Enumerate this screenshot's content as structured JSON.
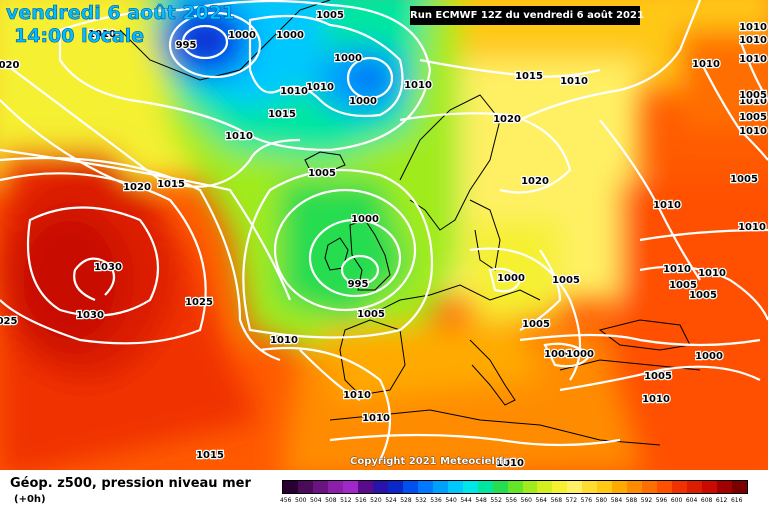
{
  "header": {
    "date": "vendredi 6 août 2021",
    "time": "14:00 locale",
    "run": "Run ECMWF 12Z du vendredi 6 août 2021"
  },
  "footer": {
    "copyright": "Copyright 2021 Meteociel.fr",
    "title": "Géop. z500, pression niveau mer",
    "offset": "(+0h)"
  },
  "map": {
    "isobar_color": "#ffffff",
    "coastline_color": "#000000",
    "pressure_labels": [
      {
        "t": "995"
      },
      {
        "t": "1000"
      },
      {
        "t": "1000"
      },
      {
        "t": "1005"
      },
      {
        "t": "1000"
      },
      {
        "t": "1000"
      },
      {
        "t": "1010"
      },
      {
        "t": "1010"
      },
      {
        "t": "1010"
      },
      {
        "t": "1015"
      },
      {
        "t": "1010"
      },
      {
        "t": "1020"
      },
      {
        "t": "1020"
      },
      {
        "t": "1015"
      },
      {
        "t": "1005"
      },
      {
        "t": "1000"
      },
      {
        "t": "995"
      },
      {
        "t": "1005"
      },
      {
        "t": "1030"
      },
      {
        "t": "1030"
      },
      {
        "t": "1025"
      },
      {
        "t": "025"
      },
      {
        "t": "1010"
      },
      {
        "t": "1010"
      },
      {
        "t": "1010"
      },
      {
        "t": "1015"
      },
      {
        "t": "1020"
      },
      {
        "t": "1010"
      },
      {
        "t": "1010"
      },
      {
        "t": "1010"
      },
      {
        "t": "1010"
      },
      {
        "t": "1005"
      },
      {
        "t": "1010"
      },
      {
        "t": "1005"
      },
      {
        "t": "1010"
      },
      {
        "t": "1005"
      },
      {
        "t": "1000"
      },
      {
        "t": "1005"
      },
      {
        "t": "1005"
      },
      {
        "t": "1000"
      },
      {
        "t": "1000"
      },
      {
        "t": "1000"
      },
      {
        "t": "1005"
      },
      {
        "t": "1005"
      },
      {
        "t": "1010"
      },
      {
        "t": "1010"
      },
      {
        "t": "1005"
      },
      {
        "t": "1010"
      },
      {
        "t": "1010"
      },
      {
        "t": "1010"
      },
      {
        "t": "1015"
      },
      {
        "t": "1010"
      },
      {
        "t": "1010"
      },
      {
        "t": "020"
      },
      {
        "t": "1010"
      }
    ]
  },
  "legend": {
    "labels": [
      "456",
      "500",
      "504",
      "508",
      "512",
      "516",
      "520",
      "524",
      "528",
      "532",
      "536",
      "540",
      "544",
      "548",
      "552",
      "556",
      "560",
      "564",
      "568",
      "572",
      "576",
      "580",
      "584",
      "588",
      "592",
      "596",
      "600",
      "604",
      "608",
      "612",
      "616"
    ],
    "colors": [
      "#2a0032",
      "#4b0a5a",
      "#6a1482",
      "#8c1eaa",
      "#a028c8",
      "#5a0a8c",
      "#2814aa",
      "#0a28c8",
      "#0050f0",
      "#0078ff",
      "#00a0ff",
      "#00c8ff",
      "#00e6e6",
      "#00e6a0",
      "#28dc50",
      "#64e628",
      "#a0eb1e",
      "#d2f01e",
      "#f5f032",
      "#fff064",
      "#ffdc32",
      "#ffc814",
      "#ffaa00",
      "#ff8c00",
      "#ff6e00",
      "#ff5000",
      "#f03200",
      "#dc1e00",
      "#c80a00",
      "#a00000",
      "#7a0000"
    ]
  }
}
